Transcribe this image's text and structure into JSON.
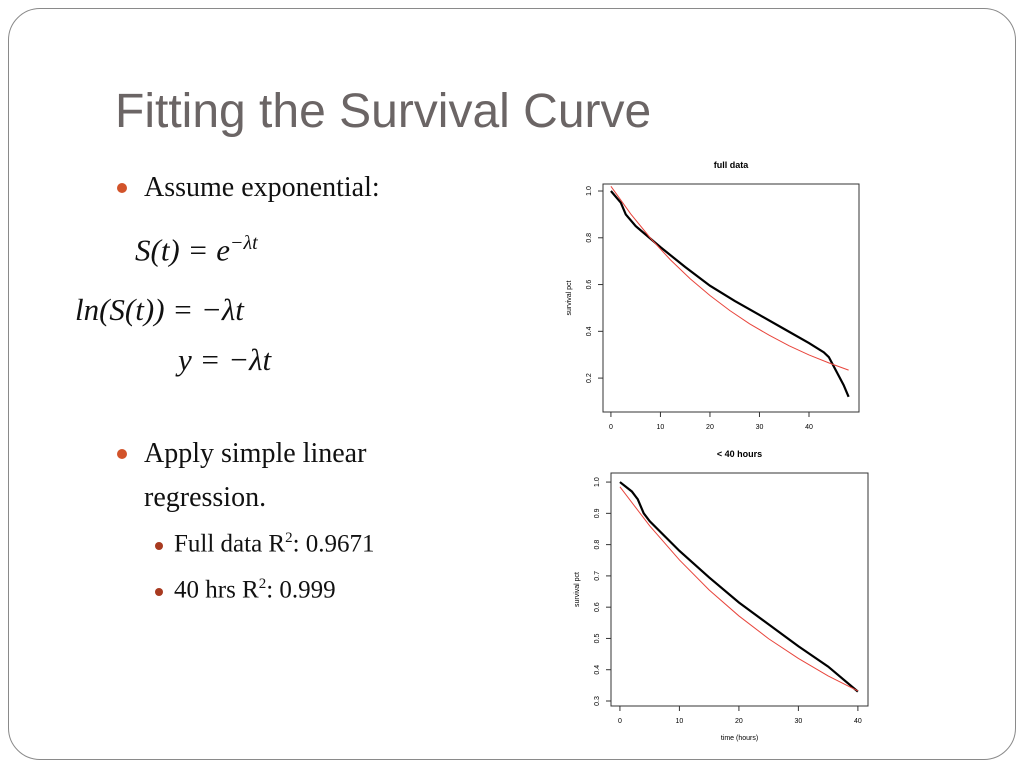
{
  "title": "Fitting the Survival Curve",
  "bullets": [
    {
      "text": "Assume exponential:"
    },
    {
      "text": "Apply simple linear regression.",
      "sub": [
        {
          "text": "Full data R",
          "sup": "2",
          "rest": ": 0.9671"
        },
        {
          "text": "40 hrs R",
          "sup": "2",
          "rest": ": 0.999"
        }
      ]
    }
  ],
  "equations": [
    {
      "lhs": "S(t) =",
      "base": "e",
      "sup": "−λt"
    },
    {
      "lhs": "ln(S(t)) =",
      "base": "−λt"
    },
    {
      "lhs": "y =",
      "base": "−λt"
    }
  ],
  "chart_data": [
    {
      "type": "line",
      "title": "full data",
      "y_label": "survival pct",
      "xlim": [
        -1.6,
        50.1
      ],
      "ylim": [
        0.055,
        1.03
      ],
      "xticks": [
        0,
        10,
        20,
        30,
        40
      ],
      "yticks": [
        0.2,
        0.4,
        0.6,
        0.8,
        {
          "value": 1,
          "label": "1.0"
        }
      ],
      "series": [
        {
          "color": "#000000",
          "x": [
            0,
            2,
            3,
            5,
            10,
            15,
            20,
            25,
            30,
            35,
            40,
            43,
            44,
            45,
            46,
            47,
            48
          ],
          "values": [
            1.0,
            0.95,
            0.9,
            0.85,
            0.76,
            0.675,
            0.595,
            0.53,
            0.47,
            0.41,
            0.35,
            0.31,
            0.29,
            0.25,
            0.21,
            0.17,
            0.12
          ]
        },
        {
          "color": "#e8453c",
          "x": [
            0,
            4,
            8,
            12,
            16,
            20,
            24,
            28,
            32,
            36,
            40,
            44,
            48
          ],
          "values": [
            1.02,
            0.902,
            0.798,
            0.706,
            0.625,
            0.553,
            0.489,
            0.432,
            0.383,
            0.338,
            0.299,
            0.265,
            0.234
          ]
        }
      ]
    },
    {
      "type": "line",
      "title": "< 40 hours",
      "x_label": "time (hours)",
      "y_label": "survival pct",
      "xlim": [
        -1.5,
        41.7
      ],
      "ylim": [
        0.284,
        1.029
      ],
      "xticks": [
        0,
        10,
        20,
        30,
        40
      ],
      "yticks": [
        0.3,
        0.4,
        0.5,
        0.6,
        0.7,
        0.8,
        0.9,
        {
          "value": 1,
          "label": "1.0"
        }
      ],
      "series": [
        {
          "color": "#000000",
          "x": [
            0,
            2,
            3,
            4,
            5,
            10,
            15,
            20,
            25,
            30,
            35,
            40
          ],
          "values": [
            1.0,
            0.97,
            0.945,
            0.9,
            0.875,
            0.78,
            0.695,
            0.615,
            0.545,
            0.475,
            0.41,
            0.33
          ]
        },
        {
          "color": "#e8453c",
          "x": [
            0,
            5,
            10,
            15,
            20,
            25,
            30,
            35,
            40
          ],
          "values": [
            0.985,
            0.86,
            0.751,
            0.655,
            0.572,
            0.499,
            0.436,
            0.38,
            0.332
          ]
        }
      ]
    }
  ]
}
